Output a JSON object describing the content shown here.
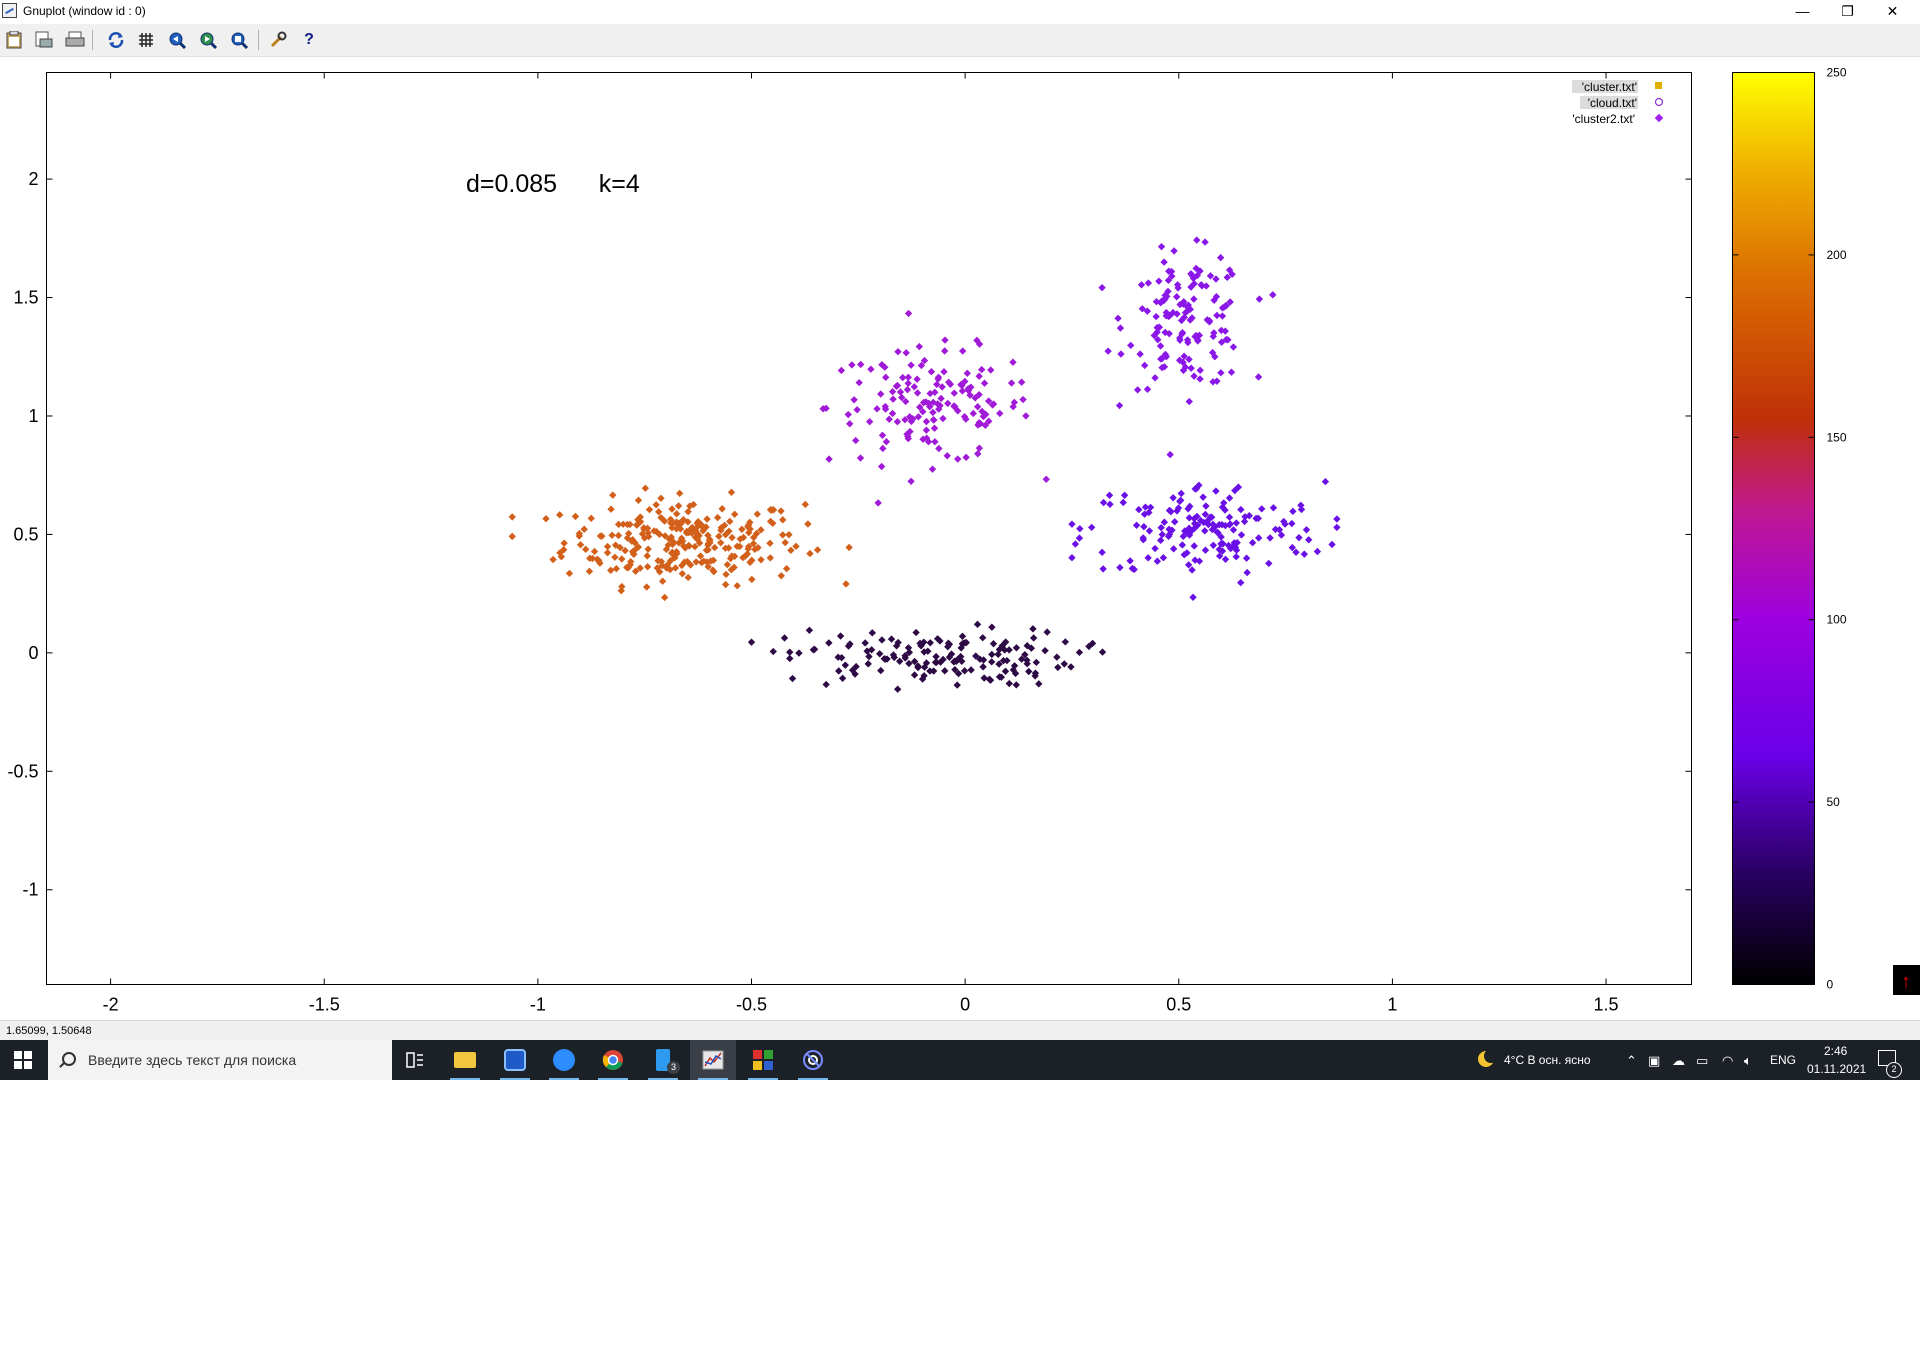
{
  "window": {
    "title": "Gnuplot (window id : 0)",
    "controls": {
      "minimize": "—",
      "restore": "❐",
      "close": "✕"
    }
  },
  "toolbar": {
    "icons": [
      "clipboard-icon",
      "print-preview-icon",
      "print-icon",
      "replot-icon",
      "grid-icon",
      "zoom-previous-icon",
      "zoom-next-icon",
      "unzoom-icon",
      "options-icon",
      "help-icon"
    ]
  },
  "colors": {
    "cluster_orange": "#d2601a",
    "cluster_purple_light": "#a11ad8",
    "cluster_purple_mid": "#8a16e8",
    "cluster_purple_blue": "#6a0fe6",
    "cluster_dark": "#2d0a45",
    "legend_cluster": "#e0b000",
    "legend_cloud": "#9030d0",
    "legend_cluster2": "#a020f0"
  },
  "chart_data": {
    "type": "scatter",
    "annotation": "d=0.085      k=4",
    "xlim": [
      -2.15,
      1.7
    ],
    "ylim": [
      -1.4,
      2.45
    ],
    "x_ticks": [
      "-2",
      "-1.5",
      "-1",
      "-0.5",
      "0",
      "0.5",
      "1",
      "1.5"
    ],
    "x_tick_values": [
      -2,
      -1.5,
      -1,
      -0.5,
      0,
      0.5,
      1,
      1.5
    ],
    "y_ticks": [
      "-1",
      "-0.5",
      "0",
      "0.5",
      "1",
      "1.5",
      "2"
    ],
    "y_tick_values": [
      -1,
      -0.5,
      0,
      0.5,
      1,
      1.5,
      2
    ],
    "legend": [
      "'cluster.txt'",
      "'cloud.txt'",
      "'cluster2.txt'"
    ],
    "legend_position": "top-right",
    "colorbar": {
      "range": [
        0,
        250
      ],
      "ticks": [
        "0",
        "50",
        "100",
        "150",
        "200",
        "250"
      ],
      "tick_values": [
        0,
        50,
        100,
        150,
        200,
        250
      ],
      "palette": "black-purple-red-orange-yellow"
    },
    "clusters": [
      {
        "color": "#d2601a",
        "center": [
          -0.66,
          0.47
        ],
        "spread": [
          0.14,
          0.09
        ],
        "range_x": [
          -1.06,
          -0.24
        ],
        "count": 260
      },
      {
        "color": "#a11ad8",
        "center": [
          -0.08,
          1.04
        ],
        "spread": [
          0.12,
          0.12
        ],
        "range_x": [
          -0.38,
          0.22
        ],
        "count": 150
      },
      {
        "color": "#8a16e8",
        "center": [
          0.52,
          1.4
        ],
        "spread": [
          0.07,
          0.14
        ],
        "range_x": [
          0.3,
          0.72
        ],
        "count": 140
      },
      {
        "color": "#6a0fe6",
        "center": [
          0.56,
          0.52
        ],
        "spread": [
          0.14,
          0.1
        ],
        "range_x": [
          0.25,
          0.87
        ],
        "count": 160
      },
      {
        "color": "#2d0a45",
        "center": [
          -0.08,
          -0.02
        ],
        "spread": [
          0.17,
          0.06
        ],
        "range_x": [
          -0.5,
          0.33
        ],
        "count": 150
      }
    ]
  },
  "statusbar": {
    "coords": "1.65099,  1.50648"
  },
  "taskbar": {
    "search_placeholder": "Введите здесь текст для поиска",
    "badge_count": "3",
    "weather": "4°C  В осн. ясно",
    "language": "ENG",
    "time": "2:46",
    "date": "01.11.2021",
    "notifications": "2"
  }
}
